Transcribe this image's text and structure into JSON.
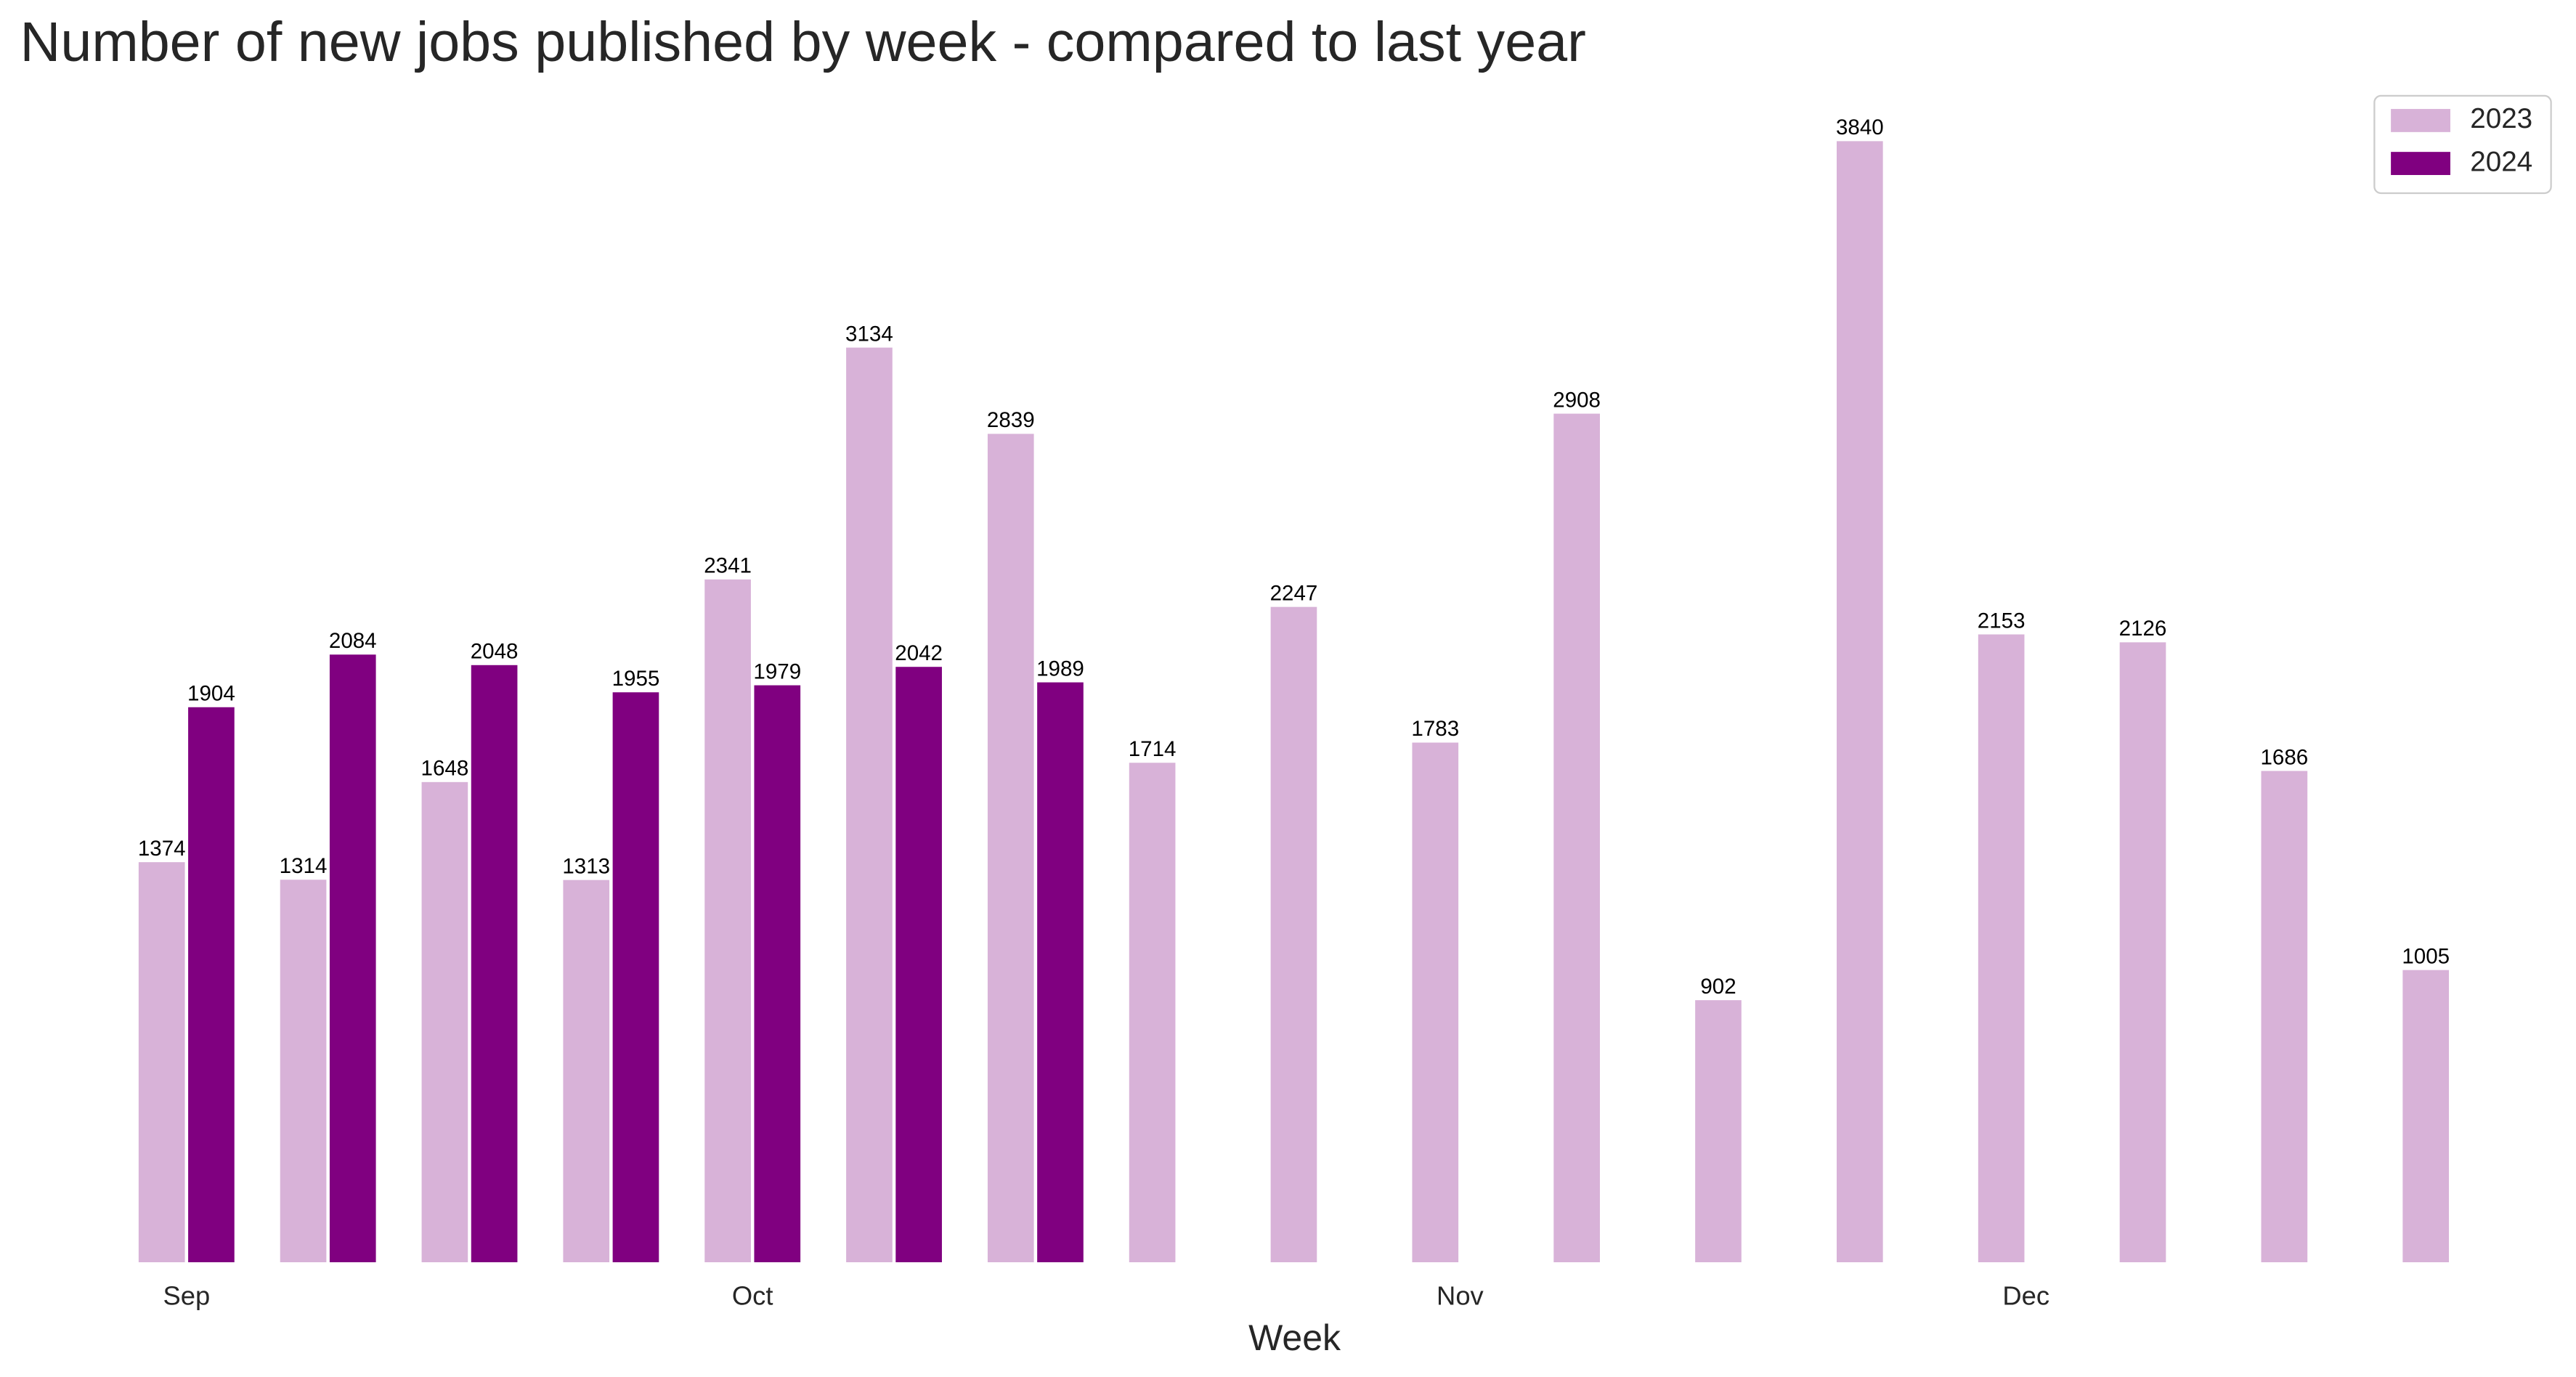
{
  "chart_data": {
    "type": "bar",
    "title": "Number of new jobs published by week - compared to last year",
    "x_label": "Week",
    "categories": [
      "Sep",
      null,
      null,
      null,
      "Oct",
      null,
      null,
      null,
      null,
      "Nov",
      null,
      null,
      null,
      "Dec",
      null,
      null,
      null
    ],
    "series": [
      {
        "name": "2023",
        "color": "#d8b2d8",
        "values": [
          1374,
          1314,
          1648,
          1313,
          2341,
          3134,
          2839,
          1714,
          2247,
          1783,
          2908,
          902,
          3840,
          2153,
          2126,
          1686,
          1005
        ]
      },
      {
        "name": "2024",
        "color": "#800080",
        "values": [
          1904,
          2084,
          2048,
          1955,
          1979,
          2042,
          1989,
          null,
          null,
          null,
          null,
          null,
          null,
          null,
          null,
          null,
          null
        ]
      }
    ],
    "ylim": [
      0,
      4032
    ],
    "legend": "upper right"
  }
}
